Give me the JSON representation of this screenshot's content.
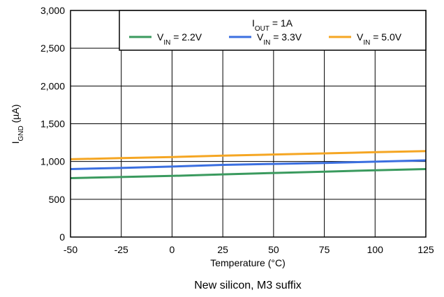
{
  "chart_data": {
    "type": "line",
    "title": "",
    "xlabel": {
      "main": "Temperature (",
      "unit": "°C",
      "close": ")"
    },
    "ylabel": {
      "main": "I",
      "sub": "GND",
      "unit": " (µA)"
    },
    "caption": "New silicon, M3 suffix",
    "xlim": [
      -50,
      125
    ],
    "ylim": [
      0,
      3000
    ],
    "xticks": [
      -50,
      -25,
      0,
      25,
      50,
      75,
      100,
      125
    ],
    "yticks": [
      0,
      500,
      1000,
      1500,
      2000,
      2500,
      3000
    ],
    "xtick_labels": [
      "-50",
      "-25",
      "0",
      "25",
      "50",
      "75",
      "100",
      "125"
    ],
    "ytick_labels": [
      "0",
      "500",
      "1,000",
      "1,500",
      "2,000",
      "2,500",
      "3,000"
    ],
    "grid": true,
    "legend": {
      "placement": "top-right",
      "title": {
        "main": "I",
        "sub": "OUT",
        "rest": " = 1A"
      }
    },
    "series": [
      {
        "name": {
          "main": "V",
          "sub": "IN",
          "rest": " = 2.2V"
        },
        "color": "#3a9a5e",
        "x": [
          -50,
          -25,
          0,
          25,
          50,
          75,
          100,
          125
        ],
        "y": [
          780,
          795,
          810,
          830,
          848,
          866,
          884,
          900
        ]
      },
      {
        "name": {
          "main": "V",
          "sub": "IN",
          "rest": " = 3.3V"
        },
        "color": "#3b6fe0",
        "x": [
          -50,
          -25,
          0,
          25,
          50,
          75,
          100,
          125
        ],
        "y": [
          900,
          915,
          933,
          955,
          968,
          980,
          998,
          1015
        ]
      },
      {
        "name": {
          "main": "V",
          "sub": "IN",
          "rest": " = 5.0V"
        },
        "color": "#f5a623",
        "x": [
          -50,
          -25,
          0,
          25,
          50,
          75,
          100,
          125
        ],
        "y": [
          1030,
          1045,
          1060,
          1078,
          1093,
          1108,
          1123,
          1138
        ]
      }
    ]
  }
}
